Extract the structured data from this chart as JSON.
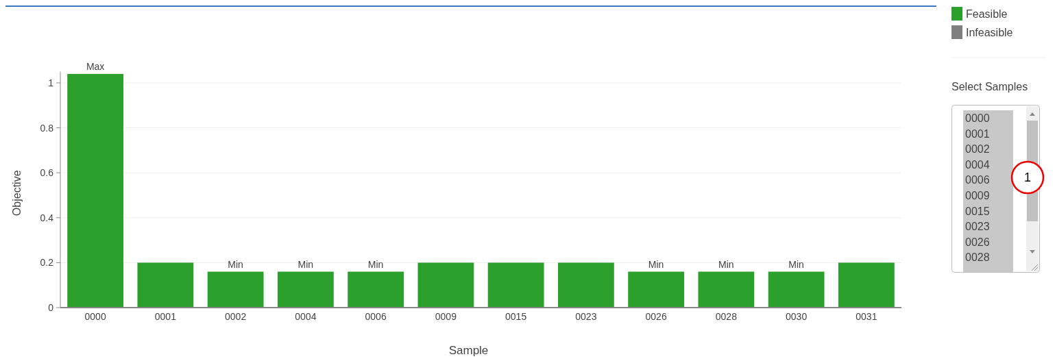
{
  "chart_data": {
    "type": "bar",
    "xlabel": "Sample",
    "ylabel": "Objective",
    "categories": [
      "0000",
      "0001",
      "0002",
      "0004",
      "0006",
      "0009",
      "0015",
      "0023",
      "0026",
      "0028",
      "0030",
      "0031"
    ],
    "series": [
      {
        "name": "Feasible",
        "color": "#2ca02c",
        "values": [
          1.04,
          0.2,
          0.16,
          0.16,
          0.16,
          0.2,
          0.2,
          0.2,
          0.16,
          0.16,
          0.16,
          0.2
        ]
      },
      {
        "name": "Infeasible",
        "color": "#7f7f7f",
        "values": [
          null,
          null,
          null,
          null,
          null,
          null,
          null,
          null,
          null,
          null,
          null,
          null
        ]
      }
    ],
    "ylim": [
      0,
      1.05
    ],
    "yticks": [
      0,
      0.2,
      0.4,
      0.6,
      0.8,
      1
    ],
    "grid": "y",
    "legend": "top right",
    "annotations": [
      "Select Samples",
      "1",
      {
        "text": "Max",
        "x": "0000",
        "y": 1.04
      },
      {
        "text": "Min",
        "x": "0002",
        "y": 0.16
      },
      {
        "text": "Min",
        "x": "0004",
        "y": 0.16
      },
      {
        "text": "Min",
        "x": "0006",
        "y": 0.16
      },
      {
        "text": "Min",
        "x": "0026",
        "y": 0.16
      },
      {
        "text": "Min",
        "x": "0028",
        "y": 0.16
      },
      {
        "text": "Min",
        "x": "0030",
        "y": 0.16
      }
    ]
  }
}
